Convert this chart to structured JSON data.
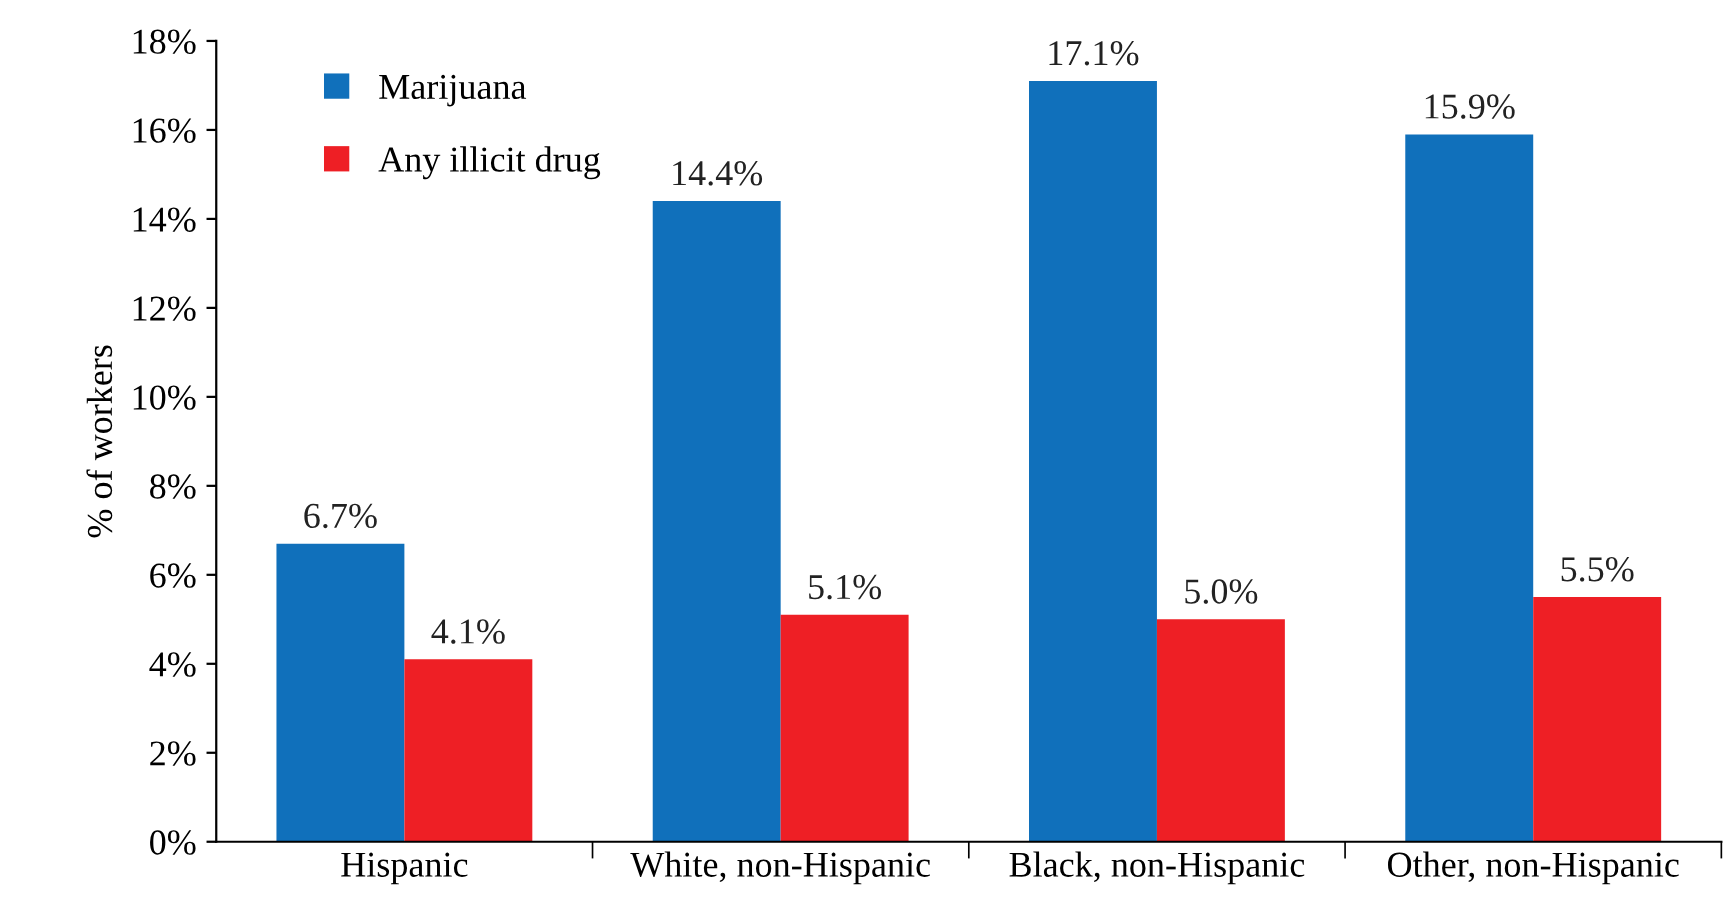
{
  "chart_data": {
    "type": "bar",
    "ylabel": "% of workers",
    "categories": [
      "Hispanic",
      "White, non-Hispanic",
      "Black, non-Hispanic",
      "Other, non-Hispanic"
    ],
    "series": [
      {
        "name": "Marijuana",
        "color": "#1070bb",
        "values": [
          6.7,
          14.4,
          17.1,
          15.9
        ],
        "value_labels": [
          "6.7%",
          "14.4%",
          "17.1%",
          "15.9%"
        ]
      },
      {
        "name": "Any illicit drug",
        "color": "#ee1f25",
        "values": [
          4.1,
          5.1,
          5.0,
          5.5
        ],
        "value_labels": [
          "4.1%",
          "5.1%",
          "5.0%",
          "5.5%"
        ]
      }
    ],
    "ylim": [
      0,
      18
    ],
    "yticks": [
      {
        "value": 0,
        "label": "0%"
      },
      {
        "value": 2,
        "label": "2%"
      },
      {
        "value": 4,
        "label": "4%"
      },
      {
        "value": 6,
        "label": "6%"
      },
      {
        "value": 8,
        "label": "8%"
      },
      {
        "value": 10,
        "label": "10%"
      },
      {
        "value": 12,
        "label": "12%"
      },
      {
        "value": 14,
        "label": "14%"
      },
      {
        "value": 16,
        "label": "16%"
      },
      {
        "value": 18,
        "label": "18%"
      }
    ],
    "grid": false,
    "legend": "top left"
  }
}
